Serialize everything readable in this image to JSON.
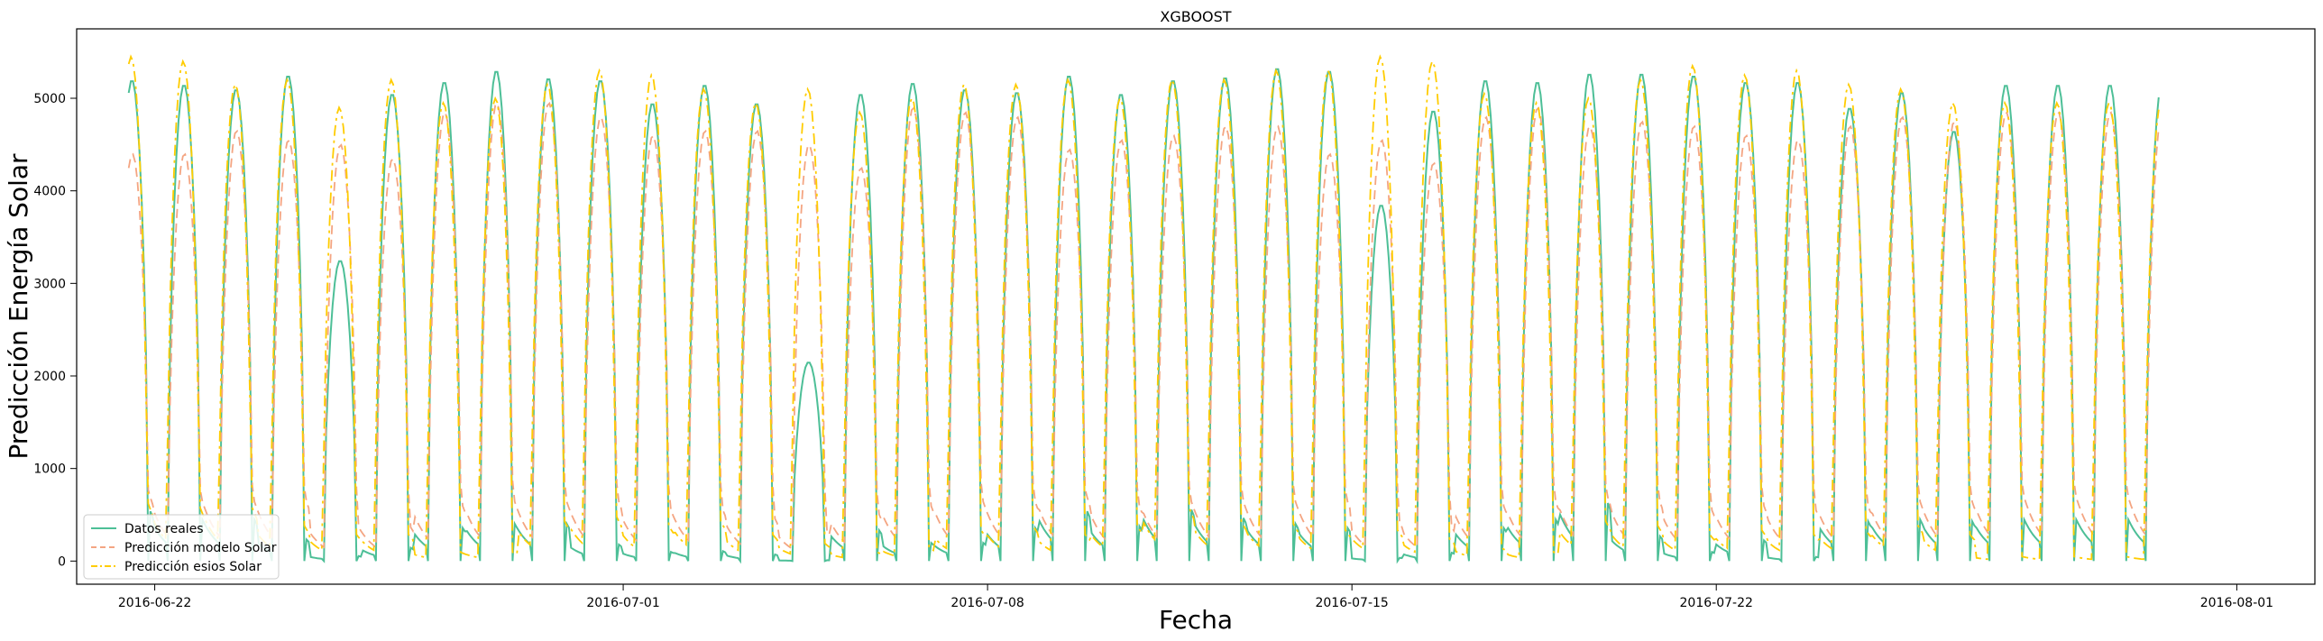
{
  "chart_data": {
    "type": "line",
    "title": "XGBOOST",
    "xlabel": "Fecha",
    "ylabel": "Predicción Energía Solar",
    "x_ticks": [
      "2016-06-22",
      "2016-07-01",
      "2016-07-08",
      "2016-07-15",
      "2016-07-22",
      "2016-08-01"
    ],
    "x_range": [
      "2016-06-20T12:00",
      "2016-08-02T12:00"
    ],
    "data_range": [
      "2016-06-21T12:00",
      "2016-07-30T12:00"
    ],
    "y_ticks": [
      0,
      1000,
      2000,
      3000,
      4000,
      5000
    ],
    "ylim": [
      -250,
      5750
    ],
    "grid": false,
    "legend_position": "lower-left",
    "sampling": "hourly",
    "series": [
      {
        "name": "Datos reales",
        "color": "#4dbf97",
        "dash": "solid",
        "daily_peak": [
          5200,
          5150,
          5100,
          5250,
          3250,
          5050,
          5180,
          5300,
          5220,
          5200,
          4950,
          5150,
          4950,
          2150,
          5050,
          5170,
          5100,
          5070,
          5250,
          5050,
          5200,
          5230,
          5330,
          5300,
          3850,
          4870,
          5200,
          5180,
          5270,
          5270,
          5250,
          5180,
          5180,
          4900,
          5070,
          4650,
          5150
        ],
        "daily_floor": [
          600,
          500,
          500,
          260,
          60,
          160,
          400,
          450,
          450,
          200,
          110,
          120,
          80,
          10,
          370,
          220,
          220,
          400,
          600,
          420,
          620,
          520,
          450,
          400,
          40,
          100,
          400,
          500,
          700,
          300,
          110,
          250,
          50,
          480,
          500,
          480,
          500
        ]
      },
      {
        "name": "Predicción modelo Solar",
        "color": "#f4a582",
        "dash": "dash",
        "daily_peak": [
          4400,
          4400,
          4650,
          4550,
          4500,
          4350,
          4850,
          4950,
          4950,
          4800,
          4600,
          4650,
          4650,
          4500,
          4250,
          4900,
          4850,
          4800,
          4450,
          4550,
          4600,
          4700,
          4700,
          4400,
          4550,
          4300,
          4800,
          4900,
          4700,
          4750,
          4700,
          4600,
          4550,
          4700,
          4800,
          4750,
          4850
        ],
        "daily_floor": [
          750,
          700,
          700,
          700,
          400,
          400,
          650,
          700,
          700,
          700,
          600,
          600,
          500,
          350,
          550,
          650,
          700,
          700,
          750,
          650,
          700,
          700,
          700,
          700,
          450,
          400,
          650,
          700,
          750,
          700,
          600,
          650,
          600,
          650,
          700,
          700,
          750
        ]
      },
      {
        "name": "Predicción esios Solar",
        "color": "#ffcc00",
        "dash": "dashdot",
        "daily_peak": [
          5450,
          5400,
          5150,
          5200,
          4900,
          5200,
          4950,
          5000,
          5150,
          5300,
          5250,
          5100,
          4950,
          5100,
          4850,
          5000,
          5150,
          5150,
          5200,
          5000,
          5200,
          5200,
          5300,
          5300,
          5450,
          5400,
          5050,
          4950,
          5000,
          5200,
          5350,
          5250,
          5300,
          5150,
          5100,
          4950,
          4950
        ],
        "daily_floor": [
          650,
          600,
          600,
          400,
          300,
          300,
          100,
          100,
          450,
          500,
          400,
          450,
          300,
          200,
          100,
          150,
          350,
          400,
          300,
          400,
          600,
          450,
          420,
          350,
          350,
          250,
          150,
          100,
          450,
          400,
          300,
          350,
          300,
          350,
          400,
          300,
          50
        ]
      }
    ]
  }
}
